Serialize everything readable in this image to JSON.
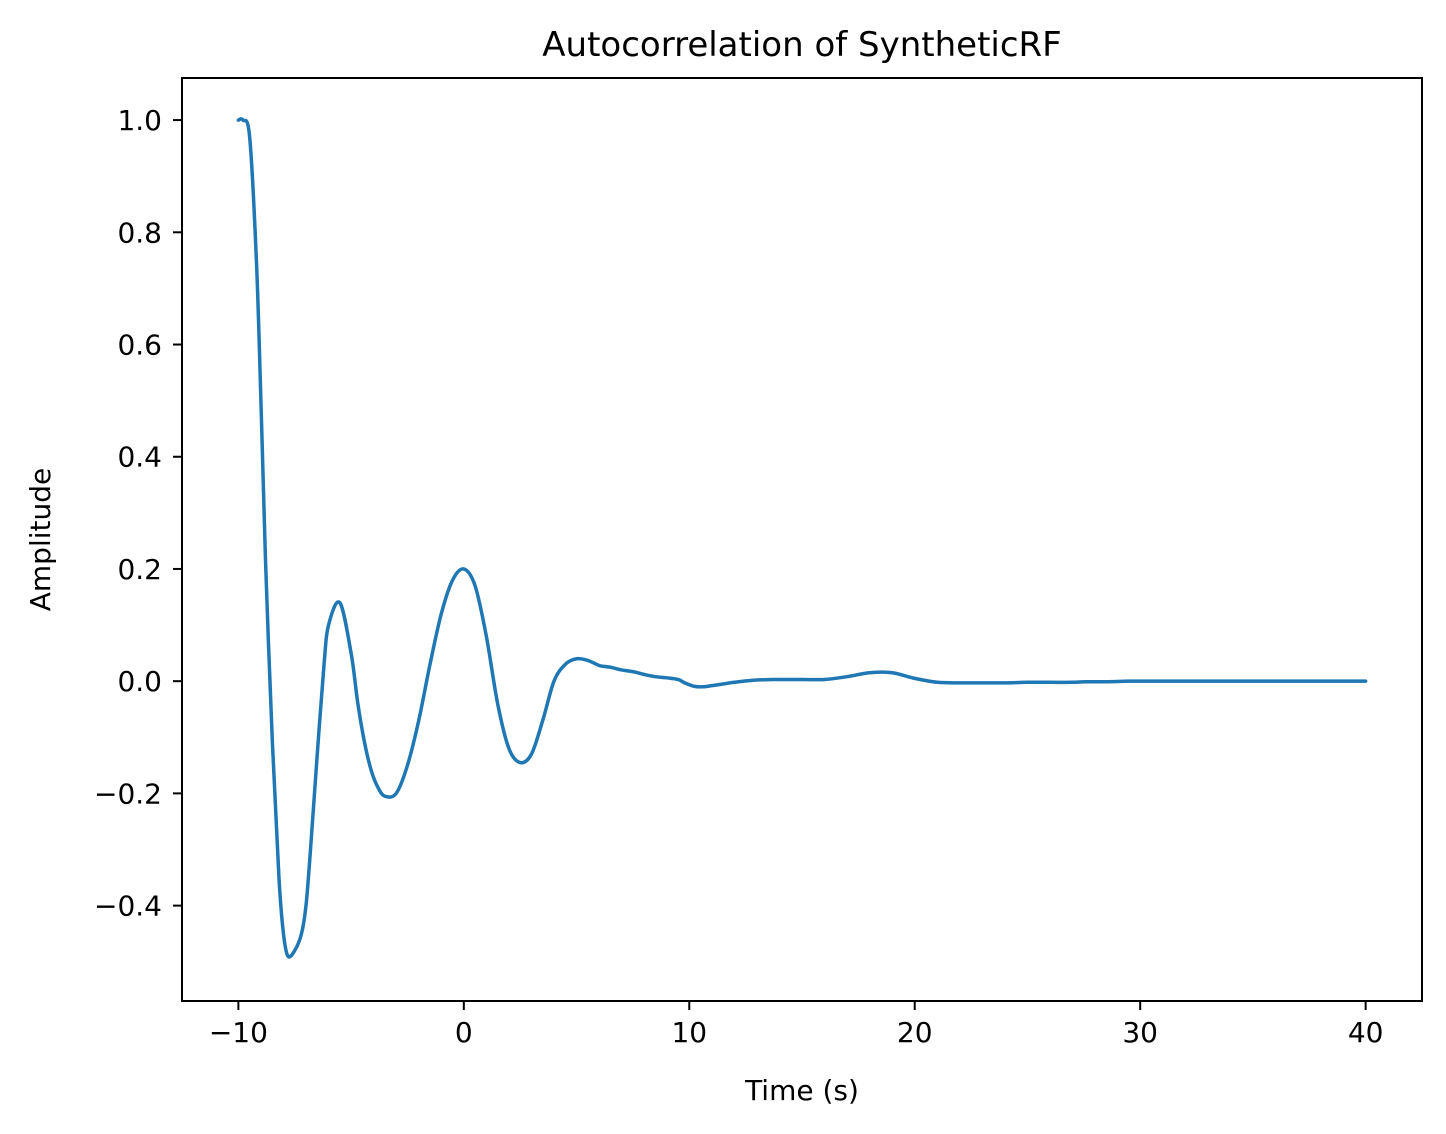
{
  "chart_data": {
    "type": "line",
    "title": "Autocorrelation of SyntheticRF",
    "xlabel": "Time (s)",
    "ylabel": "Amplitude",
    "xlim": [
      -12.5,
      42.5
    ],
    "ylim": [
      -0.57,
      1.075
    ],
    "xticks": [
      -10,
      0,
      10,
      20,
      30,
      40
    ],
    "xtick_labels": [
      "−10",
      "0",
      "10",
      "20",
      "30",
      "40"
    ],
    "yticks": [
      -0.4,
      -0.2,
      0.0,
      0.2,
      0.4,
      0.6,
      0.8,
      1.0
    ],
    "ytick_labels": [
      "−0.4",
      "−0.2",
      "0.0",
      "0.2",
      "0.4",
      "0.6",
      "0.8",
      "1.0"
    ],
    "grid": false,
    "series": [
      {
        "color": "#1f77b4",
        "x": [
          -10.0,
          -9.8,
          -9.5,
          -9.2,
          -9.0,
          -8.8,
          -8.5,
          -8.2,
          -8.0,
          -7.8,
          -7.5,
          -7.2,
          -7.0,
          -6.8,
          -6.5,
          -6.2,
          -6.0,
          -5.5,
          -5.0,
          -4.7,
          -4.4,
          -4.1,
          -3.8,
          -3.5,
          -3.0,
          -2.5,
          -2.0,
          -1.5,
          -1.0,
          -0.5,
          0.0,
          0.5,
          1.0,
          1.5,
          2.0,
          2.5,
          3.0,
          3.5,
          4.0,
          4.5,
          5.0,
          5.5,
          6.0,
          6.3,
          6.6,
          7.0,
          7.5,
          8.0,
          8.5,
          9.0,
          9.5,
          9.8,
          10.2,
          10.6,
          11.0,
          11.5,
          12.0,
          13.0,
          14.0,
          15.0,
          16.0,
          17.0,
          18.0,
          19.0,
          20.0,
          21.0,
          22.0,
          23.0,
          24.0,
          25.0,
          26.0,
          27.0,
          27.6,
          28.5,
          29.5,
          30.5,
          31.5,
          33.0,
          35.0,
          37.0,
          40.0
        ],
        "y": [
          1.0,
          1.0,
          0.97,
          0.75,
          0.5,
          0.22,
          -0.1,
          -0.35,
          -0.45,
          -0.49,
          -0.48,
          -0.45,
          -0.4,
          -0.3,
          -0.13,
          0.03,
          0.1,
          0.14,
          0.05,
          -0.04,
          -0.11,
          -0.16,
          -0.19,
          -0.205,
          -0.2,
          -0.15,
          -0.07,
          0.03,
          0.12,
          0.18,
          0.2,
          0.17,
          0.08,
          -0.04,
          -0.12,
          -0.145,
          -0.13,
          -0.07,
          0.0,
          0.03,
          0.04,
          0.037,
          0.028,
          0.026,
          0.024,
          0.02,
          0.017,
          0.012,
          0.008,
          0.006,
          0.003,
          -0.003,
          -0.009,
          -0.01,
          -0.008,
          -0.005,
          -0.002,
          0.002,
          0.003,
          0.003,
          0.003,
          0.008,
          0.015,
          0.015,
          0.005,
          -0.002,
          -0.003,
          -0.003,
          -0.003,
          -0.002,
          -0.002,
          -0.002,
          -0.001,
          -0.001,
          0.0,
          0.0,
          0.0,
          0.0,
          0.0,
          0.0,
          0.0
        ]
      }
    ]
  }
}
